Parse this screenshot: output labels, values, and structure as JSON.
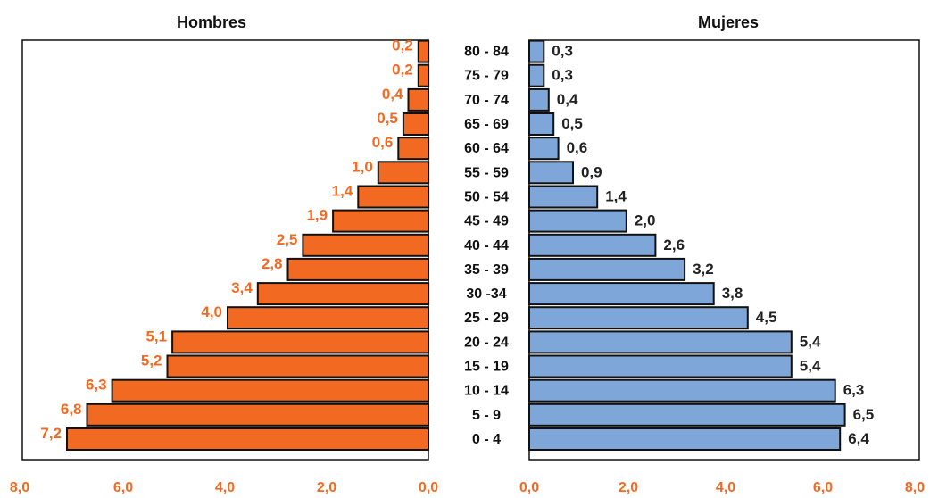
{
  "chart_data": {
    "type": "bar",
    "orientation": "horizontal",
    "categories": [
      "80 - 84",
      "75 - 79",
      "70 - 74",
      "65 - 69",
      "60 - 64",
      "55 - 59",
      "50 - 54",
      "45 - 49",
      "40 - 44",
      "35 - 39",
      "30 -34",
      "25 - 29",
      "20 - 24",
      "15 - 19",
      "10 - 14",
      "5 - 9",
      "0 - 4"
    ],
    "series": [
      {
        "name": "Hombres",
        "values": [
          0.2,
          0.2,
          0.4,
          0.5,
          0.6,
          1.0,
          1.4,
          1.9,
          2.5,
          2.8,
          3.4,
          4.0,
          5.1,
          5.2,
          6.3,
          6.8,
          7.2
        ],
        "labels": [
          "0,2",
          "0,2",
          "0,4",
          "0,5",
          "0,6",
          "1,0",
          "1,4",
          "1,9",
          "2,5",
          "2,8",
          "3,4",
          "4,0",
          "5,1",
          "5,2",
          "6,3",
          "6,8",
          "7,2"
        ],
        "color": "#f26a21",
        "label_color": "#f26a21",
        "xlim": [
          8,
          0
        ],
        "ticks": [
          "8,0",
          "6,0",
          "4,0",
          "2,0",
          "0,0"
        ],
        "tick_color": "#f26a21"
      },
      {
        "name": "Mujeres",
        "values": [
          0.3,
          0.3,
          0.4,
          0.5,
          0.6,
          0.9,
          1.4,
          2.0,
          2.6,
          3.2,
          3.8,
          4.5,
          5.4,
          5.4,
          6.3,
          6.5,
          6.4
        ],
        "labels": [
          "0,3",
          "0,3",
          "0,4",
          "0,5",
          "0,6",
          "0,9",
          "1,4",
          "2,0",
          "2,6",
          "3,2",
          "3,8",
          "4,5",
          "5,4",
          "5,4",
          "6,3",
          "6,5",
          "6,4"
        ],
        "color": "#7ea6d9",
        "label_color": "#222222",
        "xlim": [
          0,
          8
        ],
        "ticks": [
          "0,0",
          "2,0",
          "4,0",
          "6,0",
          "8,0"
        ],
        "tick_color": "#f26a21"
      }
    ],
    "grid": false,
    "legend": "none"
  }
}
